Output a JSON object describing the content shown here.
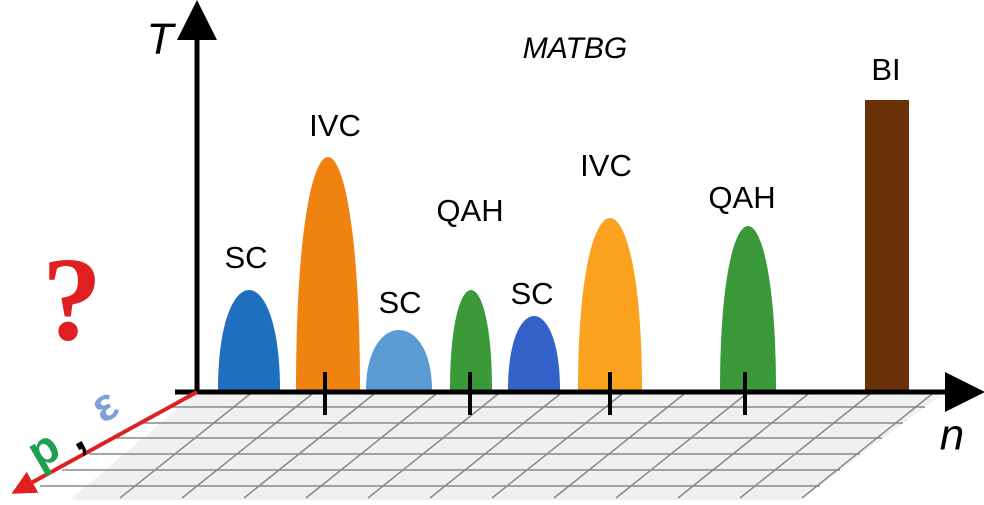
{
  "title": "MATBG",
  "axes": {
    "y": "T",
    "x": "n",
    "depth": [
      "p",
      ",",
      "ε"
    ]
  },
  "question": "?",
  "phases": [
    "SC",
    "IVC",
    "SC",
    "QAH",
    "SC",
    "IVC",
    "QAH",
    "BI"
  ]
}
